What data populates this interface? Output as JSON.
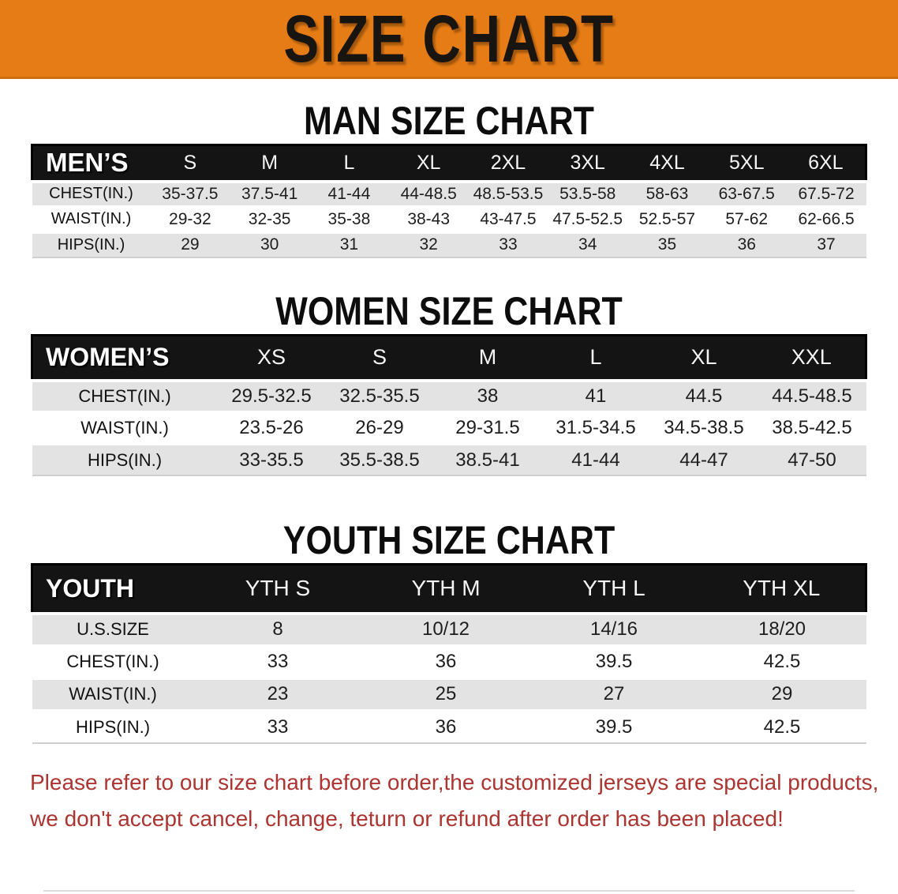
{
  "banner": {
    "title": "SIZE CHART",
    "bg_color": "#e67c15"
  },
  "sections": [
    {
      "heading": "MAN SIZE CHART",
      "table": {
        "header_label": "MEN’S",
        "columns": [
          "S",
          "M",
          "L",
          "XL",
          "2XL",
          "3XL",
          "4XL",
          "5XL",
          "6XL"
        ],
        "rows": [
          {
            "label": "CHEST(IN.)",
            "values": [
              "35-37.5",
              "37.5-41",
              "41-44",
              "44-48.5",
              "48.5-53.5",
              "53.5-58",
              "58-63",
              "63-67.5",
              "67.5-72"
            ]
          },
          {
            "label": "WAIST(IN.)",
            "values": [
              "29-32",
              "32-35",
              "35-38",
              "38-43",
              "43-47.5",
              "47.5-52.5",
              "52.5-57",
              "57-62",
              "62-66.5"
            ]
          },
          {
            "label": "HIPS(IN.)",
            "values": [
              "29",
              "30",
              "31",
              "32",
              "33",
              "34",
              "35",
              "36",
              "37"
            ]
          }
        ]
      }
    },
    {
      "heading": "WOMEN SIZE CHART",
      "table": {
        "header_label": "WOMEN’S",
        "columns": [
          "XS",
          "S",
          "M",
          "L",
          "XL",
          "XXL"
        ],
        "rows": [
          {
            "label": "CHEST(IN.)",
            "values": [
              "29.5-32.5",
              "32.5-35.5",
              "38",
              "41",
              "44.5",
              "44.5-48.5"
            ]
          },
          {
            "label": "WAIST(IN.)",
            "values": [
              "23.5-26",
              "26-29",
              "29-31.5",
              "31.5-34.5",
              "34.5-38.5",
              "38.5-42.5"
            ]
          },
          {
            "label": "HIPS(IN.)",
            "values": [
              "33-35.5",
              "35.5-38.5",
              "38.5-41",
              "41-44",
              "44-47",
              "47-50"
            ]
          }
        ]
      }
    },
    {
      "heading": "YOUTH SIZE CHART",
      "table": {
        "header_label": "YOUTH",
        "columns": [
          "YTH S",
          "YTH M",
          "YTH L",
          "YTH XL"
        ],
        "rows": [
          {
            "label": "U.S.SIZE",
            "values": [
              "8",
              "10/12",
              "14/16",
              "18/20"
            ]
          },
          {
            "label": "CHEST(IN.)",
            "values": [
              "33",
              "36",
              "39.5",
              "42.5"
            ]
          },
          {
            "label": "WAIST(IN.)",
            "values": [
              "23",
              "25",
              "27",
              "29"
            ]
          },
          {
            "label": "HIPS(IN.)",
            "values": [
              "33",
              "36",
              "39.5",
              "42.5"
            ]
          }
        ]
      }
    }
  ],
  "footer_note": {
    "line1": "Please refer to our size chart before order,the customized jerseys are special products,",
    "line2": "we don't accept cancel, change, teturn or refund after order has been placed!",
    "color": "#ac3431"
  },
  "colors": {
    "banner_orange": "#e67c15",
    "table_header_black": "#141414",
    "row_gray": "#e3e3e3",
    "note_red": "#ac3431"
  }
}
